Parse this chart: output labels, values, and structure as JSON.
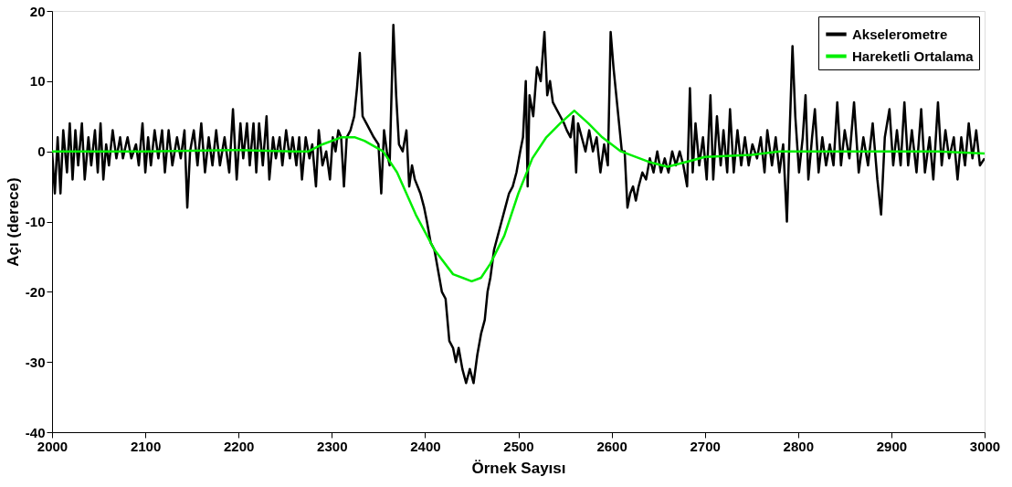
{
  "chart_data": {
    "type": "line",
    "xlabel": "Örnek Sayısı",
    "ylabel": "Açı (derece)",
    "xlim": [
      2000,
      3000
    ],
    "xticks": [
      2000,
      2100,
      2200,
      2300,
      2400,
      2500,
      2600,
      2700,
      2800,
      2900,
      3000
    ],
    "ylim": [
      -40,
      20
    ],
    "yticks": [
      -40,
      -30,
      -20,
      -10,
      0,
      10,
      20
    ],
    "grid": false,
    "legend": "top right",
    "marker": "none",
    "line_style": "solid",
    "series": [
      {
        "name": "Akselerometre",
        "color": "#000000",
        "x": [
          2000,
          2003,
          2006,
          2009,
          2012,
          2016,
          2019,
          2022,
          2025,
          2028,
          2032,
          2035,
          2039,
          2042,
          2046,
          2049,
          2052,
          2055,
          2058,
          2061,
          2065,
          2069,
          2073,
          2076,
          2081,
          2085,
          2090,
          2093,
          2097,
          2100,
          2103,
          2106,
          2110,
          2114,
          2118,
          2121,
          2125,
          2129,
          2134,
          2138,
          2142,
          2145,
          2148,
          2152,
          2156,
          2160,
          2164,
          2168,
          2172,
          2176,
          2180,
          2185,
          2190,
          2194,
          2198,
          2202,
          2205,
          2209,
          2212,
          2216,
          2219,
          2222,
          2226,
          2230,
          2233,
          2237,
          2240,
          2244,
          2247,
          2251,
          2255,
          2258,
          2262,
          2265,
          2268,
          2272,
          2276,
          2279,
          2283,
          2286,
          2290,
          2294,
          2298,
          2301,
          2304,
          2307,
          2310,
          2313,
          2316,
          2320,
          2324,
          2327,
          2330,
          2333,
          2337,
          2341,
          2345,
          2350,
          2353,
          2356,
          2359,
          2362,
          2366,
          2369,
          2372,
          2376,
          2380,
          2383,
          2386,
          2389,
          2392,
          2395,
          2399,
          2402,
          2406,
          2410,
          2414,
          2418,
          2422,
          2426,
          2430,
          2433,
          2436,
          2440,
          2444,
          2448,
          2452,
          2456,
          2460,
          2464,
          2467,
          2470,
          2474,
          2478,
          2482,
          2486,
          2490,
          2494,
          2498,
          2502,
          2505,
          2508,
          2510,
          2512,
          2516,
          2520,
          2524,
          2528,
          2531,
          2534,
          2537,
          2541,
          2545,
          2549,
          2552,
          2556,
          2559,
          2562,
          2564,
          2568,
          2572,
          2576,
          2580,
          2584,
          2588,
          2592,
          2596,
          2599,
          2602,
          2605,
          2608,
          2611,
          2614,
          2617,
          2620,
          2623,
          2626,
          2629,
          2633,
          2637,
          2641,
          2645,
          2649,
          2653,
          2657,
          2661,
          2665,
          2669,
          2673,
          2677,
          2681,
          2684,
          2687,
          2690,
          2694,
          2698,
          2702,
          2706,
          2709,
          2713,
          2717,
          2720,
          2724,
          2727,
          2731,
          2735,
          2739,
          2743,
          2747,
          2751,
          2756,
          2760,
          2764,
          2767,
          2772,
          2776,
          2780,
          2784,
          2788,
          2791,
          2794,
          2797,
          2801,
          2805,
          2808,
          2811,
          2815,
          2818,
          2822,
          2826,
          2830,
          2834,
          2838,
          2842,
          2846,
          2850,
          2855,
          2860,
          2865,
          2870,
          2875,
          2880,
          2885,
          2889,
          2893,
          2898,
          2902,
          2906,
          2910,
          2914,
          2918,
          2922,
          2927,
          2932,
          2936,
          2941,
          2945,
          2950,
          2954,
          2958,
          2962,
          2967,
          2971,
          2975,
          2979,
          2983,
          2987,
          2991,
          2995,
          3000
        ],
        "values": [
          0,
          -6,
          2,
          -6,
          3,
          -3,
          4,
          -4,
          3,
          -2,
          4,
          -4,
          2,
          -2,
          3,
          -3,
          4,
          -4,
          1,
          -2,
          3,
          -1,
          2,
          -1,
          2,
          -1,
          1,
          -2,
          4,
          -3,
          2,
          -2,
          3,
          -1,
          3,
          -3,
          3,
          -2,
          2,
          -1,
          3,
          -8,
          0,
          3,
          -2,
          4,
          -3,
          2,
          -2,
          3,
          -2,
          2,
          -3,
          6,
          -4,
          4,
          -1,
          4,
          -2,
          4,
          -3,
          4,
          -2,
          5,
          -4,
          2,
          -1,
          2,
          -2,
          3,
          -1,
          2,
          -2,
          2,
          -4,
          2,
          -1,
          1,
          -5,
          3,
          -2,
          0,
          -4,
          2,
          0,
          3,
          2,
          -5,
          2,
          3,
          5,
          9,
          14,
          5,
          4,
          3,
          2,
          1,
          -6,
          3,
          0,
          -2,
          18,
          8,
          1,
          0,
          3,
          -5,
          -2,
          -4,
          -5,
          -6,
          -8,
          -10,
          -13,
          -14,
          -17,
          -20,
          -21,
          -27,
          -28,
          -30,
          -28,
          -31,
          -33,
          -31,
          -33,
          -29,
          -26,
          -24,
          -20,
          -18,
          -14,
          -12,
          -10,
          -8,
          -6,
          -5,
          -3,
          0,
          2,
          10,
          -5,
          8,
          5,
          12,
          10,
          17,
          8,
          10,
          7,
          6,
          5,
          4,
          3,
          2,
          5,
          -3,
          4,
          2,
          0,
          3,
          0,
          2,
          -3,
          1,
          -2,
          17,
          12,
          8,
          4,
          0,
          0,
          -8,
          -6,
          -5,
          -7,
          -5,
          -3,
          -4,
          -1,
          -3,
          0,
          -3,
          -1,
          -3,
          0,
          -2,
          0,
          -2,
          -5,
          9,
          -3,
          4,
          -2,
          2,
          -4,
          8,
          -4,
          5,
          -2,
          3,
          -3,
          6,
          -3,
          3,
          -2,
          2,
          -2,
          1,
          -1,
          2,
          -3,
          3,
          -2,
          2,
          -3,
          1,
          -10,
          3,
          15,
          5,
          -3,
          2,
          8,
          -4,
          2,
          6,
          -3,
          2,
          -2,
          1,
          -2,
          7,
          -2,
          3,
          -1,
          7,
          -3,
          2,
          -2,
          4,
          -4,
          -9,
          2,
          6,
          -2,
          3,
          -2,
          7,
          -2,
          3,
          -3,
          6,
          -3,
          2,
          -4,
          7,
          -2,
          3,
          -1,
          2,
          -4,
          2,
          -2,
          4,
          -1,
          3,
          -2,
          -1
        ]
      },
      {
        "name": "Hareketli Ortalama",
        "color": "#00ee00",
        "x": [
          2000,
          2100,
          2200,
          2260,
          2275,
          2290,
          2310,
          2325,
          2335,
          2355,
          2370,
          2390,
          2410,
          2430,
          2450,
          2460,
          2470,
          2485,
          2500,
          2515,
          2530,
          2545,
          2560,
          2575,
          2590,
          2610,
          2640,
          2660,
          2680,
          2700,
          2750,
          2780,
          2800,
          2900,
          2950,
          3000
        ],
        "values": [
          0,
          0,
          0.2,
          0,
          0,
          1,
          2,
          2,
          1.5,
          0,
          -3,
          -9,
          -14,
          -17.5,
          -18.5,
          -18,
          -16,
          -12,
          -6,
          -1,
          2,
          4,
          5.8,
          4,
          2,
          0,
          -1.5,
          -2.2,
          -1.5,
          -0.8,
          -0.5,
          0,
          0,
          0,
          0,
          -0.3
        ]
      }
    ]
  }
}
